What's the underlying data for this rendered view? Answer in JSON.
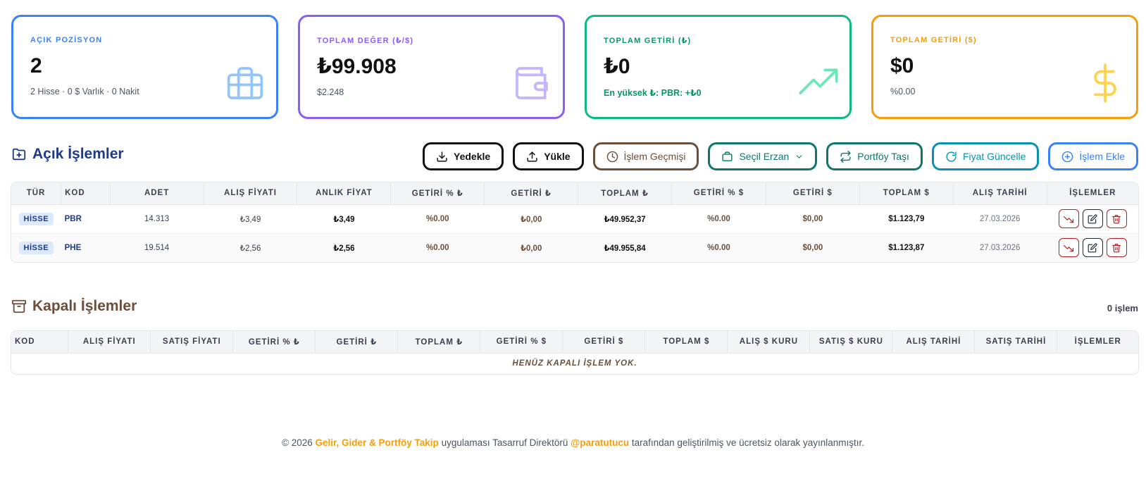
{
  "cards": [
    {
      "label": "AÇIK POZİSYON",
      "value": "2",
      "sub": "2 Hisse · 0 $ Varlık · 0 Nakit",
      "icon": "briefcase-icon",
      "color": "#3b82f6"
    },
    {
      "label": "TOPLAM DEĞER (₺/$)",
      "value": "₺99.908",
      "sub": "$2.248",
      "icon": "wallet-icon",
      "color": "#8b5cf6"
    },
    {
      "label": "TOPLAM GETİRİ (₺)",
      "value": "₺0",
      "sub": "En yüksek ₺: PBR: +₺0",
      "icon": "trending-up-icon",
      "color": "#10b981"
    },
    {
      "label": "TOPLAM GETİRİ ($)",
      "value": "$0",
      "sub": "%0.00",
      "icon": "dollar-icon",
      "color": "#f59e0b"
    }
  ],
  "open_section": {
    "title": "Açık İşlemler"
  },
  "toolbar": {
    "backup": "Yedekle",
    "upload": "Yükle",
    "history": "İşlem Geçmişi",
    "select_wallet": "Seçil Erzan",
    "move_portfolio": "Portföy Taşı",
    "update_price": "Fiyat Güncelle",
    "add_trade": "İşlem Ekle"
  },
  "open_table": {
    "headers": [
      "TÜR",
      "KOD",
      "ADET",
      "ALIŞ FİYATI",
      "ANLIK FİYAT",
      "GETİRİ % ₺",
      "GETİRİ ₺",
      "TOPLAM ₺",
      "GETİRİ % $",
      "GETİRİ $",
      "TOPLAM $",
      "ALIŞ TARİHİ",
      "İŞLEMLER"
    ],
    "rows": [
      {
        "type": "HİSSE",
        "code": "PBR",
        "qty": "14.313",
        "buy": "₺3,49",
        "now": "₺3,49",
        "ret_pct_try": "%0.00",
        "ret_try": "₺0,00",
        "total_try": "₺49.952,37",
        "ret_pct_usd": "%0.00",
        "ret_usd": "$0,00",
        "total_usd": "$1.123,79",
        "date": "27.03.2026"
      },
      {
        "type": "HİSSE",
        "code": "PHE",
        "qty": "19.514",
        "buy": "₺2,56",
        "now": "₺2,56",
        "ret_pct_try": "%0.00",
        "ret_try": "₺0,00",
        "total_try": "₺49.955,84",
        "ret_pct_usd": "%0.00",
        "ret_usd": "$0,00",
        "total_usd": "$1.123,87",
        "date": "27.03.2026"
      }
    ]
  },
  "closed_section": {
    "title": "Kapalı İşlemler",
    "count": "0 işlem"
  },
  "closed_table": {
    "headers": [
      "KOD",
      "ALIŞ FİYATI",
      "SATIŞ FİYATI",
      "GETİRİ % ₺",
      "GETİRİ ₺",
      "TOPLAM ₺",
      "GETİRİ % $",
      "GETİRİ $",
      "TOPLAM $",
      "ALIŞ $ KURU",
      "SATIŞ $ KURU",
      "ALIŞ TARİHİ",
      "SATIŞ TARİHİ",
      "İŞLEMLER"
    ],
    "empty": "HENÜZ KAPALI İŞLEM YOK."
  },
  "footer": {
    "prefix": "© 2026",
    "app_name": "Gelir, Gider & Portföy Takip",
    "middle": "uygulaması Tasarruf Direktörü",
    "handle": "@paratutucu",
    "suffix": "tarafından geliştirilmiş ve ücretsiz olarak yayınlanmıştır."
  }
}
